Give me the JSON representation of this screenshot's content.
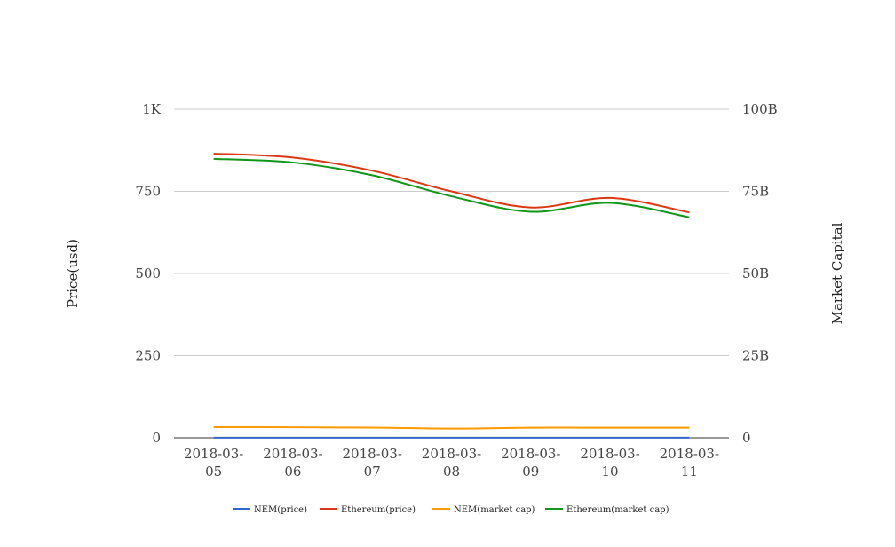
{
  "chart_data": {
    "type": "line",
    "categories": [
      "2018-03-05",
      "2018-03-06",
      "2018-03-07",
      "2018-03-08",
      "2018-03-09",
      "2018-03-10",
      "2018-03-11"
    ],
    "category_lines": [
      [
        "2018-03-",
        "05"
      ],
      [
        "2018-03-",
        "06"
      ],
      [
        "2018-03-",
        "07"
      ],
      [
        "2018-03-",
        "08"
      ],
      [
        "2018-03-",
        "09"
      ],
      [
        "2018-03-",
        "10"
      ],
      [
        "2018-03-",
        "11"
      ]
    ],
    "y_left": {
      "label": "Price(usd)",
      "ylim": [
        0,
        1000
      ],
      "ticks": [
        0,
        250,
        500,
        750,
        1000
      ],
      "tick_labels": [
        "0",
        "250",
        "500",
        "750",
        "1K"
      ]
    },
    "y_right": {
      "label": "Market Capital",
      "ylim": [
        0,
        100000000000
      ],
      "ticks": [
        0,
        25000000000,
        50000000000,
        75000000000,
        100000000000
      ],
      "tick_labels": [
        "0",
        "25B",
        "50B",
        "75B",
        "100B"
      ]
    },
    "grid": true,
    "smooth": true,
    "legend_position": "bottom",
    "series": [
      {
        "name": "NEM(price)",
        "axis": "left",
        "color": "#3366cc",
        "values": [
          0.36,
          0.36,
          0.35,
          0.32,
          0.34,
          0.34,
          0.34
        ]
      },
      {
        "name": "Ethereum(price)",
        "axis": "right",
        "color": "#dc3912",
        "values": [
          86500000000,
          85300000000,
          81300000000,
          75000000000,
          70100000000,
          73000000000,
          68600000000
        ]
      },
      {
        "name": "NEM(market cap)",
        "axis": "right",
        "color": "#ff9900",
        "values": [
          3250000000,
          3220000000,
          3100000000,
          2800000000,
          3080000000,
          3080000000,
          3080000000
        ]
      },
      {
        "name": "Ethereum(market cap)",
        "axis": "right",
        "color": "#109618",
        "values": [
          84900000000,
          83800000000,
          79900000000,
          73500000000,
          68800000000,
          71500000000,
          67100000000
        ]
      }
    ]
  }
}
